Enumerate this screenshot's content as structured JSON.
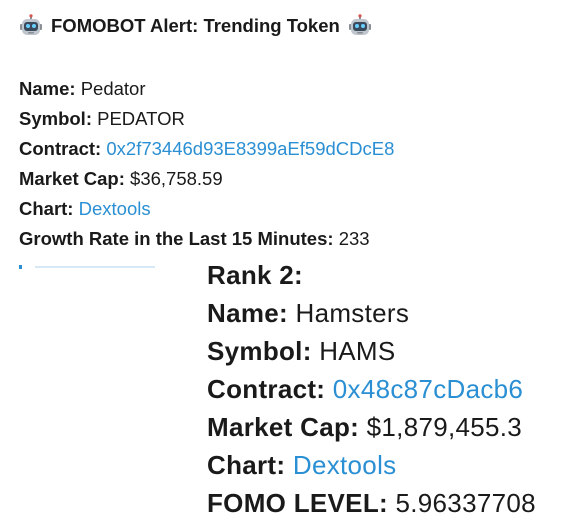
{
  "alert": {
    "title": "FOMOBOT Alert: Trending Token",
    "left_icon": "robot-icon",
    "right_icon": "robot-icon"
  },
  "token": {
    "name_label": "Name:",
    "name_value": "Pedator",
    "symbol_label": "Symbol:",
    "symbol_value": "PEDATOR",
    "contract_label": "Contract:",
    "contract_value": "0x2f73446d93E8399aEf59dCDcE8",
    "market_cap_label": "Market Cap:",
    "market_cap_value": "$36,758.59",
    "chart_label": "Chart:",
    "chart_value": "Dextools",
    "growth_label": "Growth Rate in the Last 15 Minutes:",
    "growth_value": "233"
  },
  "rank_entry": {
    "rank_heading": "Rank 2:",
    "name_label": "Name:",
    "name_value": "Hamsters",
    "symbol_label": "Symbol:",
    "symbol_value": "HAMS",
    "contract_label": "Contract:",
    "contract_value": "0x48c87cDacb6",
    "market_cap_label": "Market Cap:",
    "market_cap_value": "$1,879,455.3",
    "chart_label": "Chart:",
    "chart_value": "Dextools",
    "fomo_label": "FOMO LEVEL:",
    "fomo_value": "5.96337708"
  },
  "colors": {
    "link": "#2a8fd3",
    "text": "#1a1a1a",
    "background": "#ffffff"
  }
}
